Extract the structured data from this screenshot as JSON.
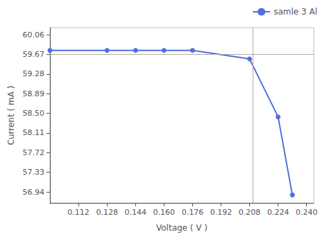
{
  "chart_data": {
    "type": "line",
    "xlabel": "Voltage ( V )",
    "ylabel": "Current ( mA )",
    "x": [
      0.096,
      0.128,
      0.144,
      0.16,
      0.176,
      0.208,
      0.224,
      0.232
    ],
    "series": [
      {
        "name": "samle 3 Al",
        "values": [
          59.75,
          59.75,
          59.75,
          59.75,
          59.75,
          59.58,
          58.43,
          56.88
        ],
        "marker": "circle"
      }
    ],
    "xlim": [
      0.096,
      0.244
    ],
    "ylim": [
      56.72,
      60.2
    ],
    "xticks": [
      0.112,
      0.128,
      0.144,
      {
        "value": 0.16,
        "label": "0.160"
      },
      0.176,
      0.192,
      0.208,
      0.224,
      {
        "value": 0.24,
        "label": "0.240"
      }
    ],
    "yticks": [
      56.94,
      57.33,
      57.72,
      58.11,
      {
        "value": 58.5,
        "label": "58.50"
      },
      58.89,
      59.28,
      59.67,
      60.06
    ],
    "ref_x": 0.208,
    "ref_y": 59.67,
    "grid": false,
    "legend": "upper right"
  }
}
